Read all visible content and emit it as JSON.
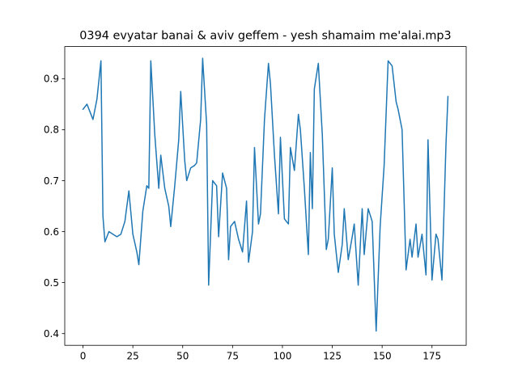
{
  "chart_data": {
    "type": "line",
    "title": "0394 evyatar banai & aviv geffem - yesh shamaim me'alai.mp3",
    "xlabel": "",
    "ylabel": "",
    "xlim": [
      -9.15,
      192.15
    ],
    "ylim": [
      0.377,
      0.963
    ],
    "xticks": [
      0,
      25,
      50,
      75,
      100,
      125,
      150,
      175
    ],
    "yticks": [
      0.4,
      0.5,
      0.6,
      0.7,
      0.8,
      0.9
    ],
    "ytick_labels": [
      "0.4",
      "0.5",
      "0.6",
      "0.7",
      "0.8",
      "0.9"
    ],
    "grid": false,
    "legend": false,
    "series": [
      {
        "color": "#1f77b4",
        "x": [
          0,
          2,
          3,
          5,
          7,
          9,
          10,
          11,
          13,
          15,
          17,
          19,
          21,
          23,
          25,
          27,
          28,
          30,
          32,
          33,
          34,
          36,
          38,
          39,
          41,
          43,
          44,
          46,
          48,
          49,
          51,
          52,
          54,
          56,
          57,
          59,
          60,
          62,
          63,
          65,
          67,
          68,
          70,
          72,
          73,
          74,
          76,
          78,
          80,
          82,
          83,
          85,
          86,
          88,
          89,
          91,
          93,
          94,
          96,
          98,
          99,
          101,
          103,
          104,
          106,
          108,
          109,
          111,
          113,
          114,
          115,
          116,
          118,
          120,
          122,
          123,
          125,
          126,
          128,
          130,
          131,
          133,
          135,
          136,
          138,
          140,
          141,
          143,
          145,
          147,
          149,
          151,
          153,
          155,
          157,
          158,
          160,
          162,
          164,
          165,
          167,
          168,
          170,
          172,
          173,
          175,
          177,
          178,
          180,
          182,
          183
        ],
        "y": [
          0.84,
          0.85,
          0.84,
          0.82,
          0.86,
          0.935,
          0.63,
          0.58,
          0.6,
          0.595,
          0.59,
          0.595,
          0.62,
          0.68,
          0.595,
          0.56,
          0.535,
          0.64,
          0.69,
          0.685,
          0.935,
          0.79,
          0.685,
          0.75,
          0.685,
          0.65,
          0.61,
          0.69,
          0.78,
          0.875,
          0.74,
          0.7,
          0.725,
          0.73,
          0.735,
          0.82,
          0.94,
          0.81,
          0.495,
          0.7,
          0.69,
          0.59,
          0.715,
          0.685,
          0.545,
          0.61,
          0.62,
          0.585,
          0.56,
          0.66,
          0.54,
          0.6,
          0.765,
          0.615,
          0.635,
          0.82,
          0.93,
          0.89,
          0.75,
          0.635,
          0.785,
          0.625,
          0.615,
          0.765,
          0.72,
          0.83,
          0.8,
          0.685,
          0.555,
          0.755,
          0.645,
          0.88,
          0.93,
          0.79,
          0.565,
          0.585,
          0.725,
          0.595,
          0.52,
          0.575,
          0.645,
          0.545,
          0.59,
          0.615,
          0.495,
          0.645,
          0.555,
          0.645,
          0.62,
          0.405,
          0.61,
          0.73,
          0.935,
          0.925,
          0.855,
          0.84,
          0.8,
          0.525,
          0.585,
          0.55,
          0.615,
          0.55,
          0.595,
          0.515,
          0.78,
          0.505,
          0.595,
          0.585,
          0.505,
          0.77,
          0.865
        ]
      }
    ]
  }
}
